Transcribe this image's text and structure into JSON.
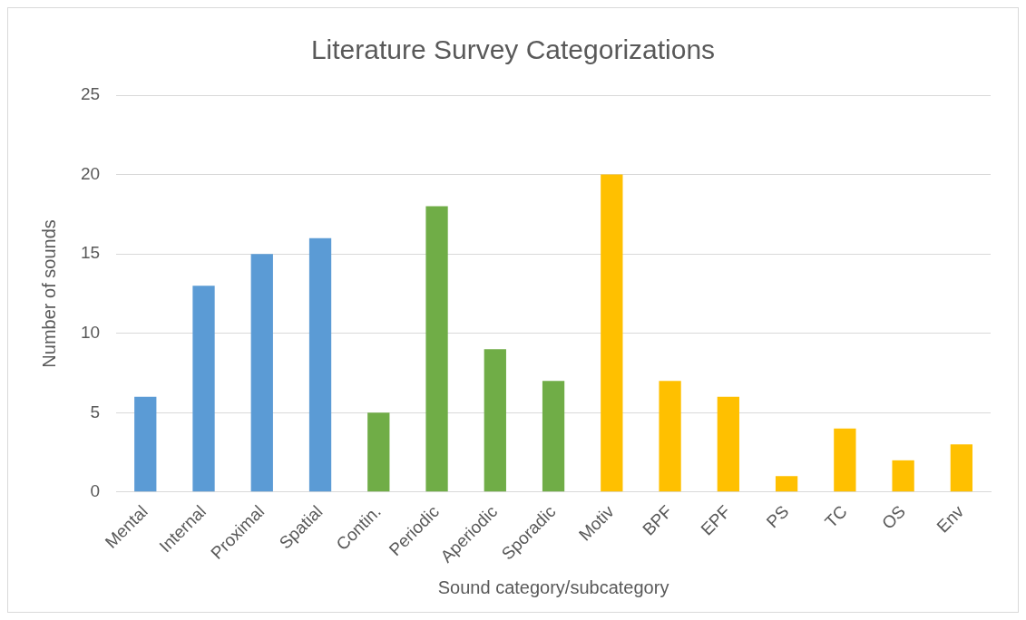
{
  "chart_data": {
    "type": "bar",
    "title": "Literature Survey Categorizations",
    "xlabel": "Sound category/subcategory",
    "ylabel": "Number of sounds",
    "categories": [
      "Mental",
      "Internal",
      "Proximal",
      "Spatial",
      "Contin.",
      "Periodic",
      "Aperiodic",
      "Sporadic",
      "Motiv",
      "BPF",
      "EPF",
      "PS",
      "TC",
      "OS",
      "Env"
    ],
    "values": [
      6,
      13,
      15,
      16,
      5,
      18,
      9,
      7,
      20,
      7,
      6,
      1,
      4,
      2,
      3
    ],
    "colors": [
      "#5b9bd5",
      "#5b9bd5",
      "#5b9bd5",
      "#5b9bd5",
      "#70ad47",
      "#70ad47",
      "#70ad47",
      "#70ad47",
      "#ffc000",
      "#ffc000",
      "#ffc000",
      "#ffc000",
      "#ffc000",
      "#ffc000",
      "#ffc000"
    ],
    "ylim": [
      0,
      25
    ],
    "yticks": [
      0,
      5,
      10,
      15,
      20,
      25
    ],
    "grid": "y",
    "legend": false
  }
}
